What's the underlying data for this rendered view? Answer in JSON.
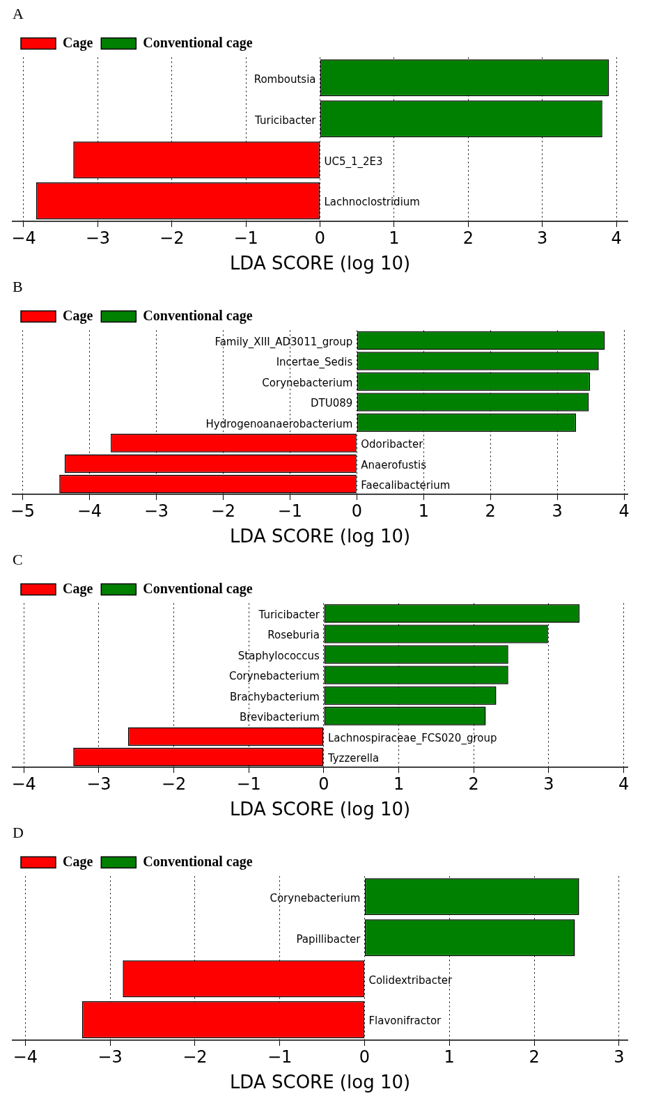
{
  "chart_data": [
    {
      "type": "bar",
      "title": "A",
      "orientation": "horizontal",
      "categories": [
        "Romboutsia",
        "Turicibacter",
        "UC5_1_2E3",
        "Lachnoclostridium"
      ],
      "series": [
        {
          "name": "Cage",
          "color": "#ff0000",
          "values": [
            null,
            null,
            -3.33,
            -3.83
          ]
        },
        {
          "name": "Conventional cage",
          "color": "#008000",
          "values": [
            3.9,
            3.81,
            null,
            null
          ]
        }
      ],
      "xlabel": "LDA SCORE (log 10)",
      "xlim": [
        -4.15,
        4.15
      ],
      "xticks": [
        -4,
        -3,
        -2,
        -1,
        0,
        1,
        2,
        3,
        4
      ],
      "grid": "x",
      "legend": "top left"
    },
    {
      "type": "bar",
      "title": "B",
      "orientation": "horizontal",
      "categories": [
        "Family_XIII_AD3011_group",
        "Incertae_Sedis",
        "Corynebacterium",
        "DTU089",
        "Hydrogenoanaerobacterium",
        "Odoribacter",
        "Anaerofustis",
        "Faecalibacterium"
      ],
      "series": [
        {
          "name": "Cage",
          "color": "#ff0000",
          "values": [
            null,
            null,
            null,
            null,
            null,
            -3.68,
            -4.37,
            -4.45
          ]
        },
        {
          "name": "Conventional cage",
          "color": "#008000",
          "values": [
            3.71,
            3.62,
            3.49,
            3.47,
            3.28,
            null,
            null,
            null
          ]
        }
      ],
      "xlabel": "LDA SCORE (log 10)",
      "xlim": [
        -5.15,
        4.05
      ],
      "xticks": [
        -5,
        -4,
        -3,
        -2,
        -1,
        0,
        1,
        2,
        3,
        4
      ],
      "grid": "x",
      "legend": "top left"
    },
    {
      "type": "bar",
      "title": "C",
      "orientation": "horizontal",
      "categories": [
        "Turicibacter",
        "Roseburia",
        "Staphylococcus",
        "Corynebacterium",
        "Brachybacterium",
        "Brevibacterium",
        "Lachnospiraceae_FCS020_group",
        "Tyzzerella"
      ],
      "series": [
        {
          "name": "Cage",
          "color": "#ff0000",
          "values": [
            null,
            null,
            null,
            null,
            null,
            null,
            -2.61,
            -3.34
          ]
        },
        {
          "name": "Conventional cage",
          "color": "#008000",
          "values": [
            3.41,
            2.99,
            2.46,
            2.46,
            2.3,
            2.16,
            null,
            null
          ]
        }
      ],
      "xlabel": "LDA SCORE (log 10)",
      "xlim": [
        -4.15,
        4.05
      ],
      "xticks": [
        -4,
        -3,
        -2,
        -1,
        0,
        1,
        2,
        3,
        4
      ],
      "grid": "x",
      "legend": "top left"
    },
    {
      "type": "bar",
      "title": "D",
      "orientation": "horizontal",
      "categories": [
        "Corynebacterium",
        "Papillibacter",
        "Colidextribacter",
        "Flavonifractor"
      ],
      "series": [
        {
          "name": "Cage",
          "color": "#ff0000",
          "values": [
            null,
            null,
            -2.85,
            -3.33
          ]
        },
        {
          "name": "Conventional cage",
          "color": "#008000",
          "values": [
            2.53,
            2.48,
            null,
            null
          ]
        }
      ],
      "xlabel": "LDA SCORE (log 10)",
      "xlim": [
        -4.15,
        3.1
      ],
      "xticks": [
        -4,
        -3,
        -2,
        -1,
        0,
        1,
        2,
        3
      ],
      "grid": "x",
      "legend": "top left"
    }
  ]
}
